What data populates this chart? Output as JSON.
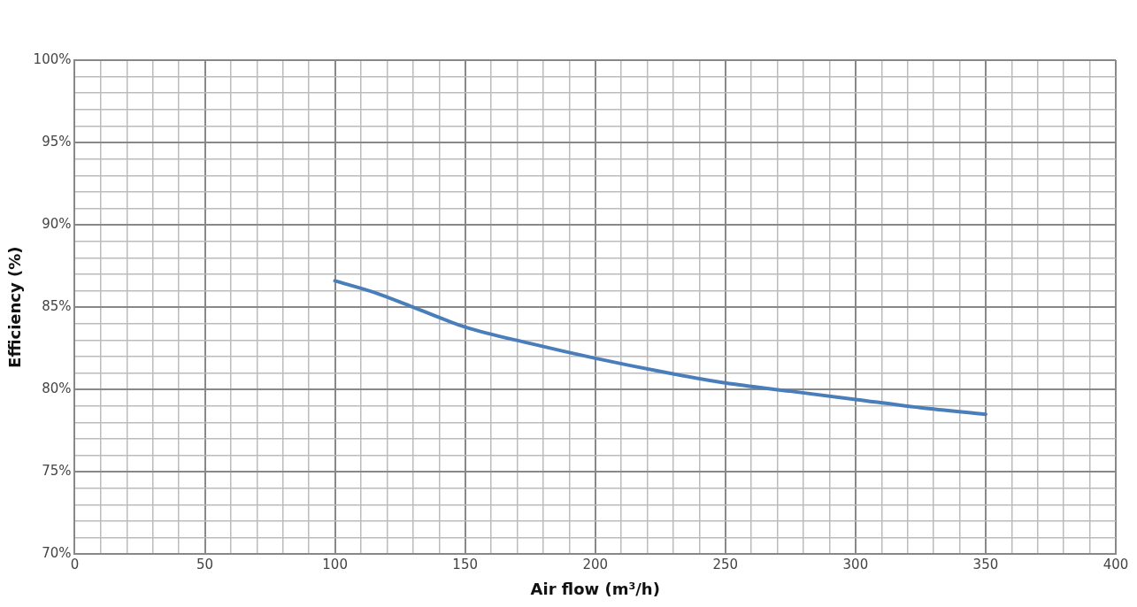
{
  "chart_data": {
    "type": "line",
    "xlabel": "Air flow (m³/h)",
    "ylabel": "Efficiency (%)",
    "x": [
      100,
      115,
      130,
      150,
      175,
      200,
      225,
      250,
      275,
      300,
      325,
      350
    ],
    "series": [
      {
        "color": "#4a7ebb",
        "values": [
          86.6,
          85.9,
          85.0,
          83.8,
          82.8,
          81.9,
          81.1,
          80.4,
          79.9,
          79.4,
          78.9,
          78.5
        ]
      }
    ],
    "xlim": [
      0,
      400
    ],
    "xticks": [
      0,
      {
        "value": 10,
        "label": null
      },
      {
        "value": 20,
        "label": null
      },
      {
        "value": 30,
        "label": null
      },
      {
        "value": 40,
        "label": null
      },
      50,
      {
        "value": 60,
        "label": null
      },
      {
        "value": 70,
        "label": null
      },
      {
        "value": 80,
        "label": null
      },
      {
        "value": 90,
        "label": null
      },
      100,
      {
        "value": 110,
        "label": null
      },
      {
        "value": 120,
        "label": null
      },
      {
        "value": 130,
        "label": null
      },
      {
        "value": 140,
        "label": null
      },
      150,
      {
        "value": 160,
        "label": null
      },
      {
        "value": 170,
        "label": null
      },
      {
        "value": 180,
        "label": null
      },
      {
        "value": 190,
        "label": null
      },
      200,
      {
        "value": 210,
        "label": null
      },
      {
        "value": 220,
        "label": null
      },
      {
        "value": 230,
        "label": null
      },
      {
        "value": 240,
        "label": null
      },
      250,
      {
        "value": 260,
        "label": null
      },
      {
        "value": 270,
        "label": null
      },
      {
        "value": 280,
        "label": null
      },
      {
        "value": 290,
        "label": null
      },
      300,
      {
        "value": 310,
        "label": null
      },
      {
        "value": 320,
        "label": null
      },
      {
        "value": 330,
        "label": null
      },
      {
        "value": 340,
        "label": null
      },
      350,
      {
        "value": 360,
        "label": null
      },
      {
        "value": 370,
        "label": null
      },
      {
        "value": 380,
        "label": null
      },
      {
        "value": 390,
        "label": null
      },
      400
    ],
    "ylim": [
      70,
      100
    ],
    "yticks": [
      {
        "value": 70,
        "label": "70%"
      },
      {
        "value": 71,
        "label": null
      },
      {
        "value": 72,
        "label": null
      },
      {
        "value": 73,
        "label": null
      },
      {
        "value": 74,
        "label": null
      },
      {
        "value": 75,
        "label": "75%"
      },
      {
        "value": 76,
        "label": null
      },
      {
        "value": 77,
        "label": null
      },
      {
        "value": 78,
        "label": null
      },
      {
        "value": 79,
        "label": null
      },
      {
        "value": 80,
        "label": "80%"
      },
      {
        "value": 81,
        "label": null
      },
      {
        "value": 82,
        "label": null
      },
      {
        "value": 83,
        "label": null
      },
      {
        "value": 84,
        "label": null
      },
      {
        "value": 85,
        "label": "85%"
      },
      {
        "value": 86,
        "label": null
      },
      {
        "value": 87,
        "label": null
      },
      {
        "value": 88,
        "label": null
      },
      {
        "value": 89,
        "label": null
      },
      {
        "value": 90,
        "label": "90%"
      },
      {
        "value": 91,
        "label": null
      },
      {
        "value": 92,
        "label": null
      },
      {
        "value": 93,
        "label": null
      },
      {
        "value": 94,
        "label": null
      },
      {
        "value": 95,
        "label": "95%"
      },
      {
        "value": 96,
        "label": null
      },
      {
        "value": 97,
        "label": null
      },
      {
        "value": 98,
        "label": null
      },
      {
        "value": 99,
        "label": null
      },
      {
        "value": 100,
        "label": "100%"
      }
    ],
    "grid": true,
    "marker": "none",
    "line_style": "solid",
    "legend": false
  }
}
